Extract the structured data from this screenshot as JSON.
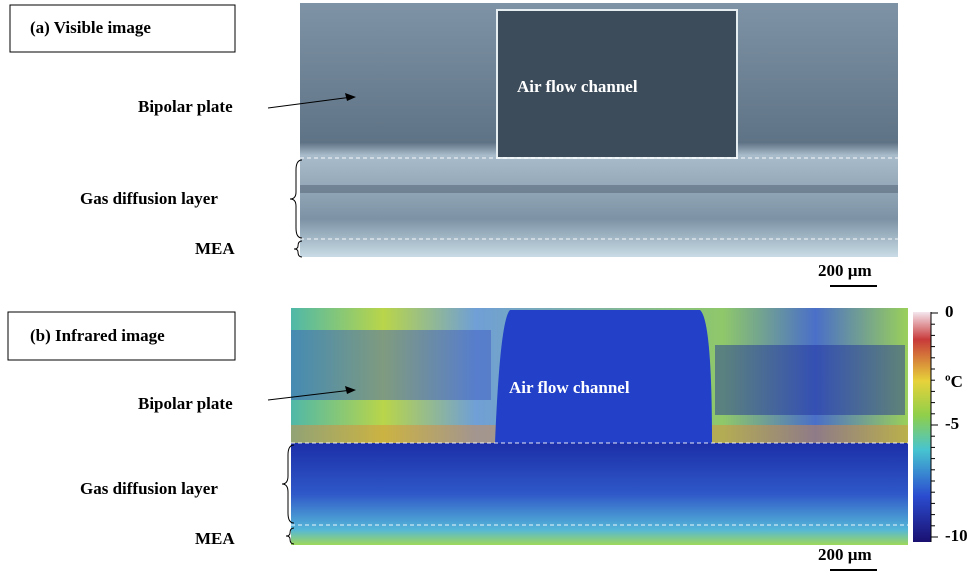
{
  "panels": [
    {
      "label": "(a) Visible image",
      "bipolar_plate": "Bipolar plate",
      "channel": "Air flow channel",
      "gdl": "Gas diffusion layer",
      "mea": "MEA",
      "scale_bar": "200 µm"
    },
    {
      "label": "(b) Infrared image",
      "bipolar_plate": "Bipolar plate",
      "channel": "Air flow channel",
      "gdl": "Gas diffusion layer",
      "mea": "MEA",
      "scale_bar": "200 µm"
    }
  ],
  "colorbar": {
    "unit": "ºC",
    "ticks": [
      0,
      -5,
      -10
    ]
  }
}
